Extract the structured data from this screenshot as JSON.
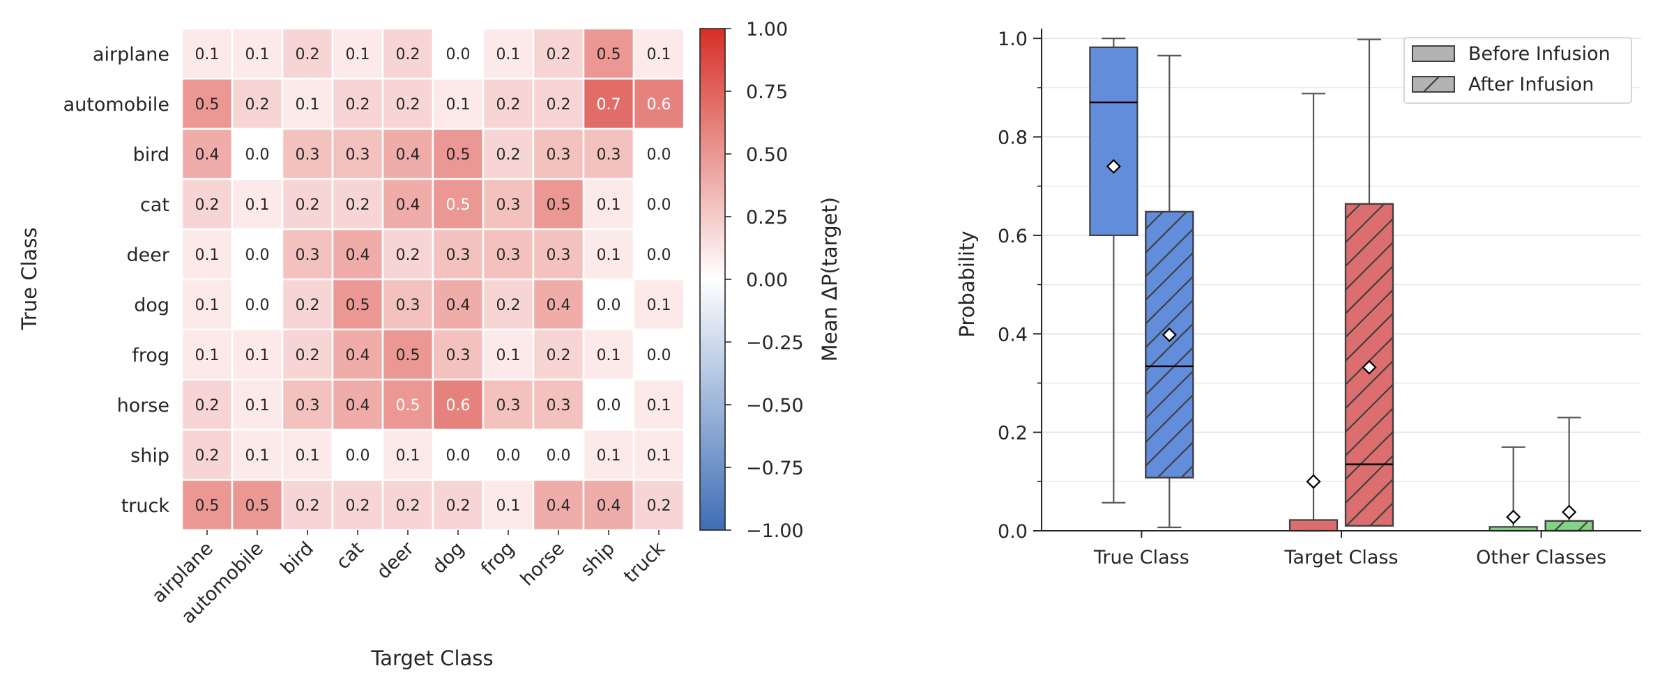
{
  "colors": {
    "heat_low": "#3d6db5",
    "heat_mid": "#ffffff",
    "heat_high": "#d62f27",
    "heat_text_dark": "#262626",
    "heat_text_light": "#ffffff",
    "box_true": "#628ddb",
    "box_target": "#dc6e6f",
    "box_other": "#82d383",
    "legend_swatch": "#b3b3b3",
    "edge": "#3f3f3f"
  },
  "chart_data": [
    {
      "type": "heatmap",
      "xlabel": "Target Class",
      "ylabel": "True Class",
      "rows": [
        "airplane",
        "automobile",
        "bird",
        "cat",
        "deer",
        "dog",
        "frog",
        "horse",
        "ship",
        "truck"
      ],
      "cols": [
        "airplane",
        "automobile",
        "bird",
        "cat",
        "deer",
        "dog",
        "frog",
        "horse",
        "ship",
        "truck"
      ],
      "values": [
        [
          0.1,
          0.1,
          0.2,
          0.1,
          0.2,
          0.0,
          0.1,
          0.2,
          0.5,
          0.1
        ],
        [
          0.5,
          0.2,
          0.1,
          0.2,
          0.2,
          0.1,
          0.2,
          0.2,
          0.7,
          0.6
        ],
        [
          0.4,
          0.0,
          0.3,
          0.3,
          0.4,
          0.5,
          0.2,
          0.3,
          0.3,
          0.0
        ],
        [
          0.2,
          0.1,
          0.2,
          0.2,
          0.4,
          0.5,
          0.3,
          0.5,
          0.1,
          0.0
        ],
        [
          0.1,
          0.0,
          0.3,
          0.4,
          0.2,
          0.3,
          0.3,
          0.3,
          0.1,
          0.0
        ],
        [
          0.1,
          0.0,
          0.2,
          0.5,
          0.3,
          0.4,
          0.2,
          0.4,
          0.0,
          0.1
        ],
        [
          0.1,
          0.1,
          0.2,
          0.4,
          0.5,
          0.3,
          0.1,
          0.2,
          0.1,
          0.0
        ],
        [
          0.2,
          0.1,
          0.3,
          0.4,
          0.5,
          0.6,
          0.3,
          0.3,
          0.0,
          0.1
        ],
        [
          0.2,
          0.1,
          0.1,
          0.0,
          0.1,
          0.0,
          0.0,
          0.0,
          0.1,
          0.1
        ],
        [
          0.5,
          0.5,
          0.2,
          0.2,
          0.2,
          0.2,
          0.1,
          0.4,
          0.4,
          0.2
        ]
      ],
      "value_labels": [
        [
          "0.1",
          "0.1",
          "0.2",
          "0.1",
          "0.2",
          "0.0",
          "0.1",
          "0.2",
          "0.5",
          "0.1"
        ],
        [
          "0.5",
          "0.2",
          "0.1",
          "0.2",
          "0.2",
          "0.1",
          "0.2",
          "0.2",
          "0.7",
          "0.6"
        ],
        [
          "0.4",
          "0.0",
          "0.3",
          "0.3",
          "0.4",
          "0.5",
          "0.2",
          "0.3",
          "0.3",
          "0.0"
        ],
        [
          "0.2",
          "0.1",
          "0.2",
          "0.2",
          "0.4",
          "0.5",
          "0.3",
          "0.5",
          "0.1",
          "0.0"
        ],
        [
          "0.1",
          "0.0",
          "0.3",
          "0.4",
          "0.2",
          "0.3",
          "0.3",
          "0.3",
          "0.1",
          "0.0"
        ],
        [
          "0.1",
          "0.0",
          "0.2",
          "0.5",
          "0.3",
          "0.4",
          "0.2",
          "0.4",
          "0.0",
          "0.1"
        ],
        [
          "0.1",
          "0.1",
          "0.2",
          "0.4",
          "0.5",
          "0.3",
          "0.1",
          "0.2",
          "0.1",
          "0.0"
        ],
        [
          "0.2",
          "0.1",
          "0.3",
          "0.4",
          "0.5",
          "0.6",
          "0.3",
          "0.3",
          "0.0",
          "0.1"
        ],
        [
          "0.2",
          "0.1",
          "0.1",
          "0.0",
          "0.1",
          "0.0",
          "0.0",
          "0.0",
          "0.1",
          "0.1"
        ],
        [
          "0.5",
          "0.5",
          "0.2",
          "0.2",
          "0.2",
          "0.2",
          "0.1",
          "0.4",
          "0.4",
          "0.2"
        ]
      ],
      "light_text_cells": [
        [
          1,
          8
        ],
        [
          1,
          9
        ],
        [
          3,
          5
        ],
        [
          7,
          4
        ],
        [
          7,
          5
        ]
      ],
      "colorbar": {
        "label": "Mean ΔP(target)",
        "range": [
          -1.0,
          1.0
        ],
        "ticks": [
          1.0,
          0.75,
          0.5,
          0.25,
          0.0,
          -0.25,
          -0.5,
          -0.75,
          -1.0
        ],
        "tick_labels": [
          "1.00",
          "0.75",
          "0.50",
          "0.25",
          "0.00",
          "−0.25",
          "−0.50",
          "−0.75",
          "−1.00"
        ]
      }
    },
    {
      "type": "box",
      "ylabel": "Probability",
      "ylim": [
        0.0,
        1.02
      ],
      "yticks": [
        0.0,
        0.2,
        0.4,
        0.6,
        0.8,
        1.0
      ],
      "ytick_labels": [
        "0.0",
        "0.2",
        "0.4",
        "0.6",
        "0.8",
        "1.0"
      ],
      "y_minor_ticks": [
        0.1,
        0.3,
        0.5,
        0.7,
        0.9
      ],
      "grid": "y",
      "categories": [
        "True Class",
        "Target Class",
        "Other Classes"
      ],
      "legend": {
        "position": "top-right",
        "entries": [
          "Before Infusion",
          "After Infusion"
        ]
      },
      "boxes": [
        {
          "category": "True Class",
          "series": "Before Infusion",
          "whisker_low": 0.057,
          "q1": 0.6,
          "median": 0.87,
          "q3": 0.982,
          "whisker_high": 1.0,
          "mean": 0.74
        },
        {
          "category": "True Class",
          "series": "After Infusion",
          "whisker_low": 0.007,
          "q1": 0.108,
          "median": 0.334,
          "q3": 0.648,
          "whisker_high": 0.965,
          "mean": 0.398
        },
        {
          "category": "Target Class",
          "series": "Before Infusion",
          "whisker_low": 0.0,
          "q1": 0.0,
          "median": 0.0,
          "q3": 0.022,
          "whisker_high": 0.888,
          "mean": 0.1
        },
        {
          "category": "Target Class",
          "series": "After Infusion",
          "whisker_low": 0.01,
          "q1": 0.01,
          "median": 0.135,
          "q3": 0.664,
          "whisker_high": 0.998,
          "mean": 0.332
        },
        {
          "category": "Other Classes",
          "series": "Before Infusion",
          "whisker_low": 0.0,
          "q1": 0.0,
          "median": 0.0,
          "q3": 0.008,
          "whisker_high": 0.17,
          "mean": 0.028
        },
        {
          "category": "Other Classes",
          "series": "After Infusion",
          "whisker_low": 0.0,
          "q1": 0.0,
          "median": 0.0,
          "q3": 0.02,
          "whisker_high": 0.23,
          "mean": 0.038
        }
      ]
    }
  ]
}
